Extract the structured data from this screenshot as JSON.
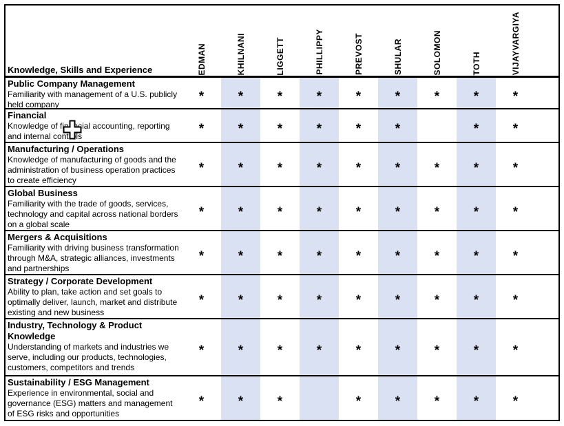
{
  "table": {
    "corner_label": "Knowledge, Skills and Experience",
    "mark_symbol": "*",
    "shaded_color": "#D9E1F2",
    "columns": [
      "EDMAN",
      "KHILNANI",
      "LIGGETT",
      "PHILLIPPY",
      "PREVOST",
      "SHULAR",
      "SOLOMON",
      "TOTH",
      "VIJAYVARGIYA"
    ],
    "shaded_columns": [
      "KHILNANI",
      "PHILLIPPY",
      "SHULAR",
      "TOTH"
    ],
    "rows": [
      {
        "title": "Public Company Management",
        "description": "Familiarity with management of a U.S. publicly held company",
        "marks": [
          "*",
          "*",
          "*",
          "*",
          "*",
          "*",
          "*",
          "*",
          "*"
        ]
      },
      {
        "title": "Financial",
        "description": "Knowledge of financial accounting, reporting and internal controls",
        "marks": [
          "*",
          "*",
          "*",
          "*",
          "*",
          "*",
          "",
          "*",
          "*"
        ]
      },
      {
        "title": "Manufacturing / Operations",
        "description": "Knowledge of manufacturing of goods and the administration of business operation practices to create efficiency",
        "marks": [
          "*",
          "*",
          "*",
          "*",
          "*",
          "*",
          "*",
          "*",
          "*"
        ]
      },
      {
        "title": "Global Business",
        "description": "Familiarity with the trade of goods, services, technology and capital across national borders on a global scale",
        "marks": [
          "*",
          "*",
          "*",
          "*",
          "*",
          "*",
          "*",
          "*",
          "*"
        ]
      },
      {
        "title": "Mergers & Acquisitions",
        "description": "Familiarity with driving business transformation through M&A, strategic alliances, investments and partnerships",
        "marks": [
          "*",
          "*",
          "*",
          "*",
          "*",
          "*",
          "*",
          "*",
          "*"
        ]
      },
      {
        "title": "Strategy / Corporate Development",
        "description": "Ability to plan, take action and set goals to optimally deliver, launch, market and distribute existing and new business",
        "marks": [
          "*",
          "*",
          "*",
          "*",
          "*",
          "*",
          "*",
          "*",
          "*"
        ]
      },
      {
        "title": "Industry, Technology & Product Knowledge",
        "description": "Understanding of markets and industries we serve, including our products, technologies, customers, competitors and trends",
        "marks": [
          "*",
          "*",
          "*",
          "*",
          "*",
          "*",
          "*",
          "*",
          "*"
        ]
      },
      {
        "title": "Sustainability / ESG Management",
        "description": "Experience in environmental, social and governance (ESG) matters and management of ESG risks and opportunities",
        "marks": [
          "*",
          "*",
          "*",
          "",
          "*",
          "*",
          "*",
          "*",
          "*"
        ]
      }
    ]
  },
  "cursor": {
    "name": "excel-cell-cursor"
  }
}
